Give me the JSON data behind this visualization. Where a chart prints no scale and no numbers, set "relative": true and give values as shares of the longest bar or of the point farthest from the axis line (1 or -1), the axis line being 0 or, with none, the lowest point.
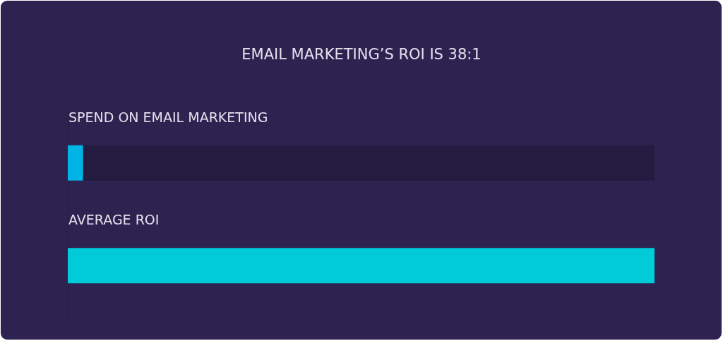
{
  "chart_data": {
    "type": "bar",
    "orientation": "horizontal",
    "relative": true,
    "title": "EMAIL MARKETING’S ROI IS 38:1",
    "categories": [
      "SPEND ON EMAIL MARKETING",
      "AVERAGE ROI"
    ],
    "values": [
      0.026,
      1
    ],
    "colors": [
      "#00b4e6",
      "#02cbd9"
    ]
  }
}
